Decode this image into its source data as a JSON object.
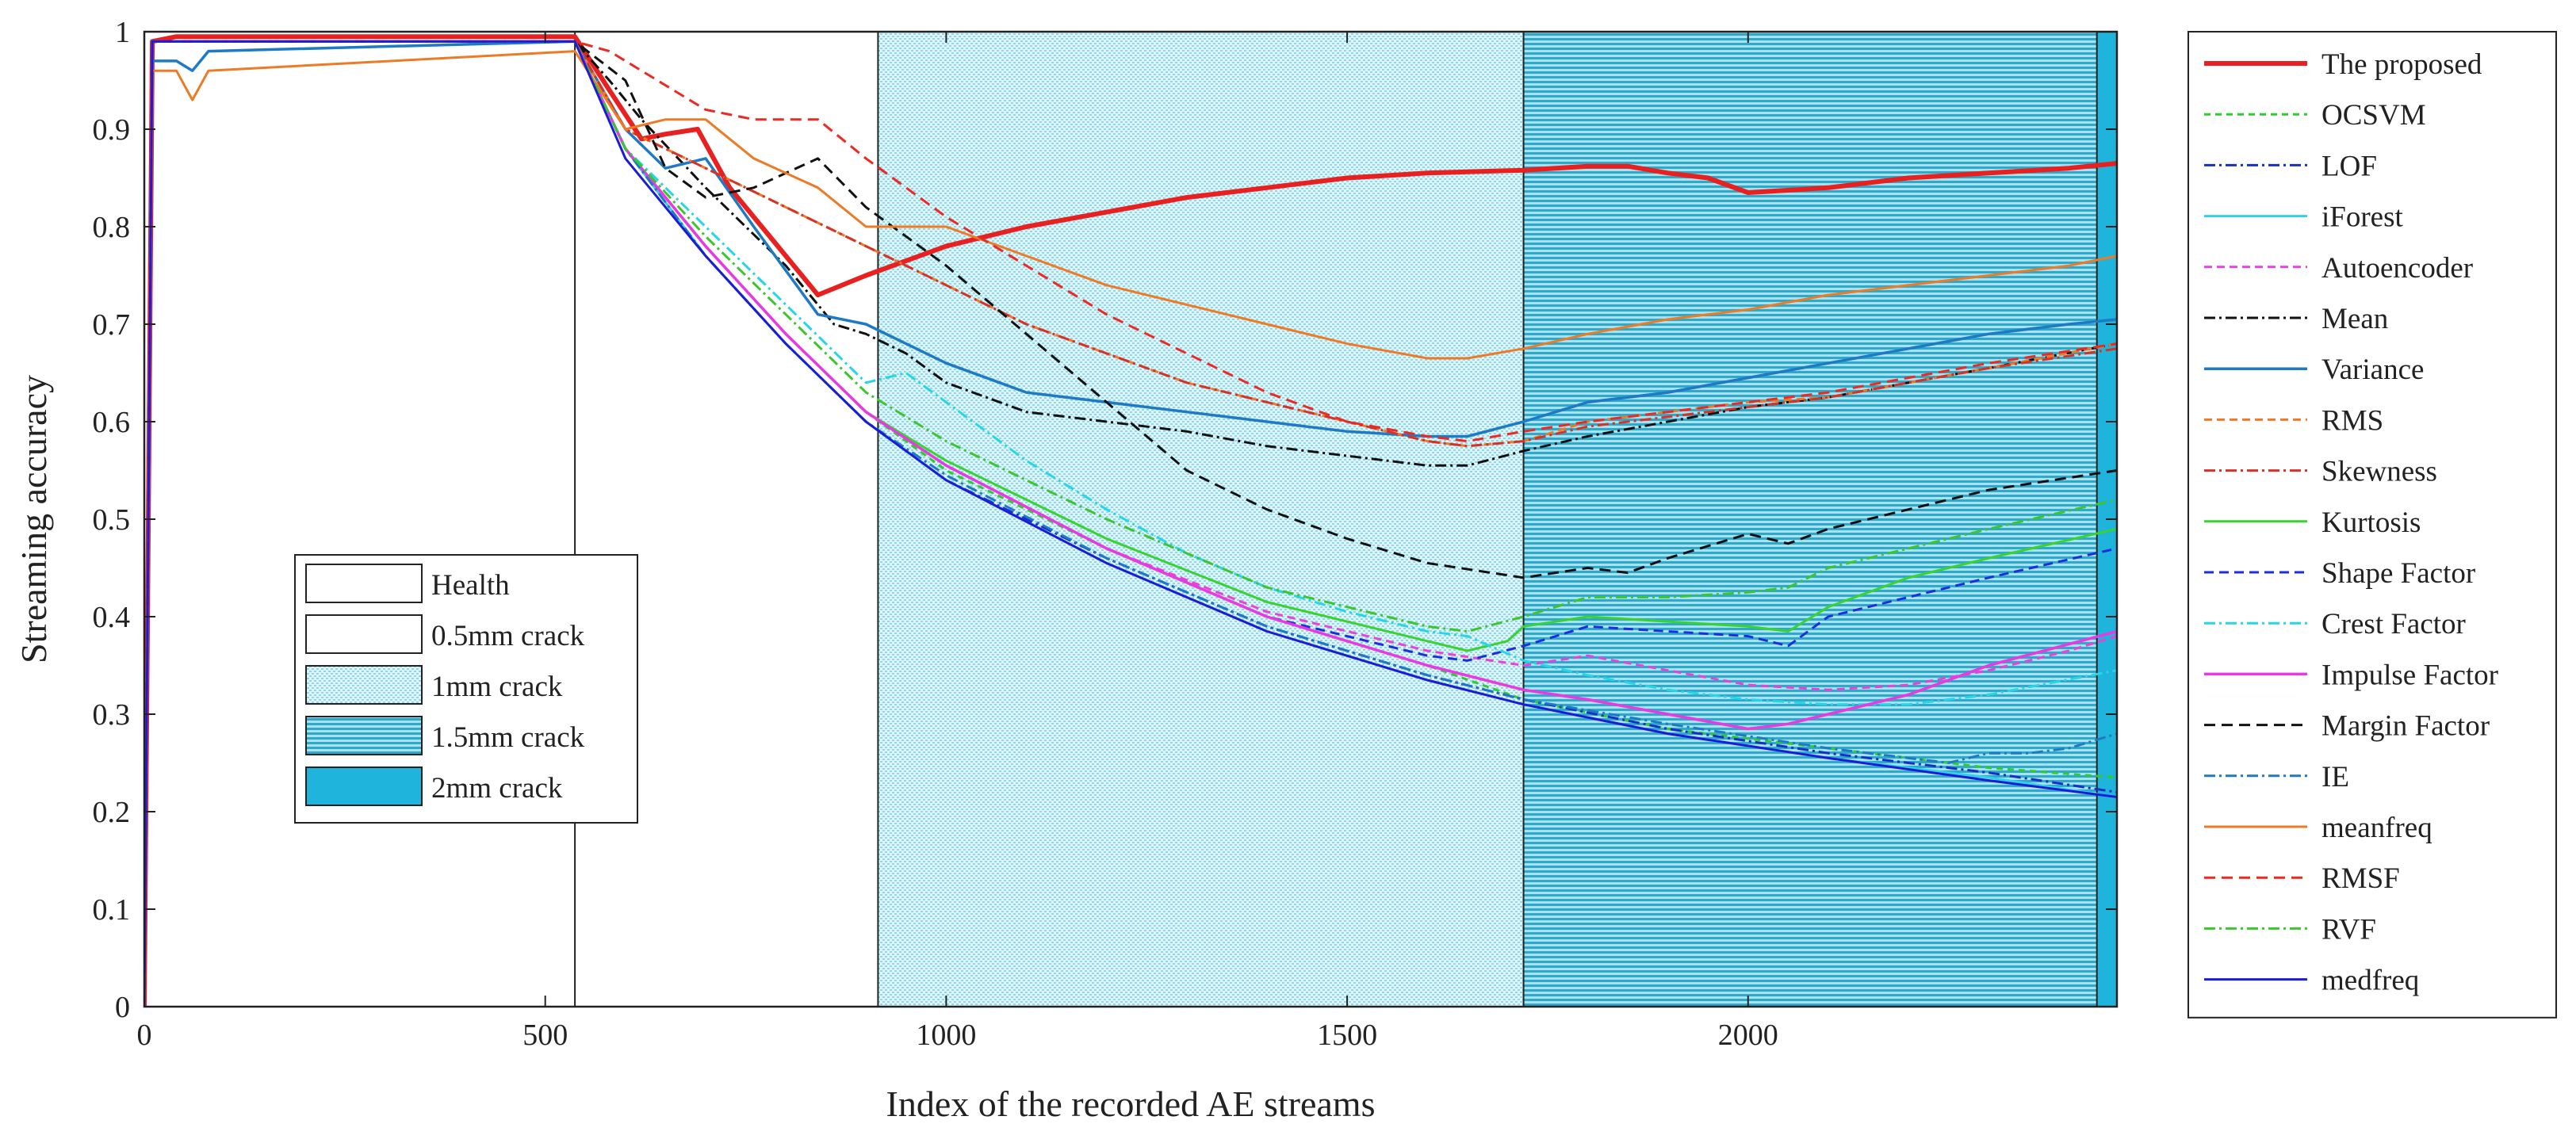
{
  "chart_data": {
    "type": "line",
    "title": "",
    "xlabel": "Index of the recorded AE streams",
    "ylabel": "Streaming accuracy",
    "xlim": [
      0,
      2460
    ],
    "ylim": [
      0,
      1
    ],
    "xticks": [
      0,
      500,
      1000,
      1500,
      2000
    ],
    "yticks": [
      0,
      0.1,
      0.2,
      0.3,
      0.4,
      0.5,
      0.6,
      0.7,
      0.8,
      0.9,
      1
    ],
    "grid": false,
    "legend_position": "outside-right",
    "colors": {
      "region_light": "#bfe9f3",
      "region_dark": "#3cb8d7",
      "region_solid": "#1fb4dc"
    },
    "regions": [
      {
        "label": "Health",
        "from": 0,
        "to": 537,
        "style": "blank"
      },
      {
        "label": "0.5mm crack",
        "from": 537,
        "to": 915,
        "style": "blank"
      },
      {
        "label": "1mm crack",
        "from": 915,
        "to": 1720,
        "style": "light-dots"
      },
      {
        "label": "1.5mm crack",
        "from": 1720,
        "to": 2435,
        "style": "dense-lines"
      },
      {
        "label": "2mm crack",
        "from": 2435,
        "to": 2460,
        "style": "solid"
      }
    ],
    "series": [
      {
        "name": "The proposed",
        "color": "#e8201f",
        "dash": "solid",
        "width": 6,
        "x": [
          0,
          10,
          40,
          537,
          580,
          620,
          650,
          690,
          730,
          780,
          840,
          900,
          1000,
          1100,
          1200,
          1300,
          1400,
          1500,
          1600,
          1720,
          1800,
          1850,
          1900,
          1950,
          2000,
          2100,
          2200,
          2300,
          2400,
          2460
        ],
        "y": [
          0,
          0.99,
          0.995,
          0.995,
          0.94,
          0.89,
          0.895,
          0.9,
          0.84,
          0.79,
          0.73,
          0.75,
          0.78,
          0.8,
          0.815,
          0.83,
          0.84,
          0.85,
          0.855,
          0.858,
          0.862,
          0.862,
          0.855,
          0.85,
          0.835,
          0.84,
          0.85,
          0.855,
          0.86,
          0.865
        ]
      },
      {
        "name": "OCSVM",
        "color": "#2ecc2e",
        "dash": "8,6",
        "width": 3,
        "x": [
          0,
          10,
          40,
          537,
          600,
          700,
          800,
          900,
          1000,
          1200,
          1400,
          1600,
          1720,
          1900,
          2100,
          2300,
          2460
        ],
        "y": [
          0,
          0.99,
          0.99,
          0.99,
          0.88,
          0.78,
          0.69,
          0.61,
          0.55,
          0.47,
          0.4,
          0.35,
          0.315,
          0.285,
          0.265,
          0.245,
          0.235
        ]
      },
      {
        "name": "LOF",
        "color": "#1630c8",
        "dash": "14,5,3,5",
        "width": 3,
        "x": [
          0,
          10,
          40,
          537,
          600,
          700,
          800,
          900,
          1000,
          1200,
          1400,
          1600,
          1720,
          1900,
          2100,
          2300,
          2460
        ],
        "y": [
          0,
          0.99,
          0.99,
          0.99,
          0.88,
          0.77,
          0.68,
          0.6,
          0.54,
          0.46,
          0.39,
          0.34,
          0.315,
          0.285,
          0.26,
          0.24,
          0.22
        ]
      },
      {
        "name": "iForest",
        "color": "#33d0ec",
        "dash": "solid",
        "width": 3,
        "x": [
          0,
          10,
          40,
          537,
          600,
          700,
          800,
          900,
          1000,
          1200,
          1400,
          1600,
          1720,
          1900,
          2100,
          2300,
          2460
        ],
        "y": [
          0,
          0.99,
          0.99,
          0.99,
          0.88,
          0.77,
          0.68,
          0.6,
          0.54,
          0.455,
          0.385,
          0.335,
          0.31,
          0.28,
          0.255,
          0.235,
          0.215
        ]
      },
      {
        "name": "Autoencoder",
        "color": "#e843d8",
        "dash": "10,6",
        "width": 3,
        "x": [
          0,
          10,
          40,
          537,
          600,
          700,
          800,
          900,
          1000,
          1200,
          1400,
          1600,
          1720,
          1800,
          1900,
          2000,
          2100,
          2200,
          2300,
          2400,
          2460
        ],
        "y": [
          0,
          0.99,
          0.99,
          0.99,
          0.88,
          0.78,
          0.69,
          0.61,
          0.555,
          0.47,
          0.405,
          0.365,
          0.35,
          0.36,
          0.345,
          0.33,
          0.325,
          0.33,
          0.345,
          0.365,
          0.38
        ]
      },
      {
        "name": "Mean",
        "color": "#111111",
        "dash": "14,5,3,5",
        "width": 3,
        "x": [
          0,
          10,
          40,
          537,
          580,
          620,
          700,
          800,
          860,
          900,
          950,
          1000,
          1100,
          1200,
          1300,
          1400,
          1500,
          1600,
          1650,
          1720,
          1800,
          1900,
          2000,
          2100,
          2200,
          2300,
          2460
        ],
        "y": [
          0,
          0.99,
          0.99,
          0.99,
          0.95,
          0.91,
          0.84,
          0.76,
          0.7,
          0.69,
          0.67,
          0.64,
          0.61,
          0.6,
          0.59,
          0.575,
          0.565,
          0.555,
          0.555,
          0.57,
          0.585,
          0.6,
          0.615,
          0.625,
          0.64,
          0.655,
          0.68
        ]
      },
      {
        "name": "Variance",
        "color": "#1f7ac6",
        "dash": "solid",
        "width": 3.5,
        "x": [
          0,
          10,
          40,
          60,
          80,
          537,
          600,
          650,
          700,
          760,
          840,
          900,
          1000,
          1100,
          1200,
          1300,
          1400,
          1500,
          1600,
          1650,
          1720,
          1800,
          1900,
          2000,
          2100,
          2200,
          2300,
          2400,
          2460
        ],
        "y": [
          0,
          0.97,
          0.97,
          0.96,
          0.98,
          0.99,
          0.9,
          0.86,
          0.87,
          0.8,
          0.71,
          0.7,
          0.66,
          0.63,
          0.62,
          0.61,
          0.6,
          0.59,
          0.585,
          0.585,
          0.6,
          0.62,
          0.63,
          0.645,
          0.66,
          0.675,
          0.69,
          0.7,
          0.705
        ]
      },
      {
        "name": "RMS",
        "color": "#ed7b25",
        "dash": "10,6",
        "width": 3,
        "x": [
          0,
          10,
          40,
          537,
          600,
          700,
          800,
          900,
          1000,
          1100,
          1200,
          1300,
          1400,
          1500,
          1600,
          1650,
          1720,
          1800,
          1900,
          2000,
          2100,
          2200,
          2300,
          2460
        ],
        "y": [
          0,
          0.99,
          0.99,
          0.99,
          0.9,
          0.86,
          0.82,
          0.78,
          0.74,
          0.7,
          0.67,
          0.64,
          0.62,
          0.6,
          0.58,
          0.575,
          0.58,
          0.6,
          0.61,
          0.62,
          0.625,
          0.64,
          0.655,
          0.68
        ]
      },
      {
        "name": "Skewness",
        "color": "#d63328",
        "dash": "14,5,3,5",
        "width": 3,
        "x": [
          0,
          10,
          40,
          537,
          600,
          700,
          800,
          900,
          1000,
          1100,
          1200,
          1300,
          1400,
          1500,
          1600,
          1650,
          1720,
          1800,
          1900,
          2000,
          2100,
          2200,
          2300,
          2460
        ],
        "y": [
          0,
          0.99,
          0.99,
          0.99,
          0.9,
          0.86,
          0.82,
          0.78,
          0.74,
          0.7,
          0.67,
          0.64,
          0.62,
          0.6,
          0.58,
          0.575,
          0.58,
          0.595,
          0.605,
          0.615,
          0.625,
          0.64,
          0.655,
          0.675
        ]
      },
      {
        "name": "Kurtosis",
        "color": "#39d330",
        "dash": "solid",
        "width": 3,
        "x": [
          0,
          10,
          40,
          537,
          600,
          700,
          800,
          900,
          1000,
          1200,
          1400,
          1600,
          1650,
          1700,
          1720,
          1800,
          1900,
          2000,
          2050,
          2100,
          2200,
          2300,
          2460
        ],
        "y": [
          0,
          0.99,
          0.99,
          0.99,
          0.88,
          0.78,
          0.69,
          0.61,
          0.56,
          0.48,
          0.415,
          0.375,
          0.365,
          0.375,
          0.39,
          0.4,
          0.395,
          0.39,
          0.385,
          0.41,
          0.44,
          0.46,
          0.49
        ]
      },
      {
        "name": "Shape Factor",
        "color": "#1c2ee0",
        "dash": "12,7",
        "width": 3,
        "x": [
          0,
          10,
          40,
          537,
          600,
          700,
          800,
          900,
          1000,
          1200,
          1400,
          1600,
          1650,
          1720,
          1800,
          1900,
          2000,
          2050,
          2100,
          2200,
          2300,
          2460
        ],
        "y": [
          0,
          0.99,
          0.99,
          0.99,
          0.88,
          0.78,
          0.69,
          0.61,
          0.555,
          0.47,
          0.4,
          0.36,
          0.355,
          0.37,
          0.39,
          0.385,
          0.38,
          0.37,
          0.4,
          0.42,
          0.44,
          0.47
        ]
      },
      {
        "name": "Crest Factor",
        "color": "#24d6e8",
        "dash": "14,5,3,5",
        "width": 3,
        "x": [
          0,
          10,
          40,
          537,
          600,
          700,
          800,
          900,
          950,
          1000,
          1100,
          1200,
          1300,
          1400,
          1500,
          1600,
          1650,
          1720,
          1800,
          1900,
          2000,
          2100,
          2200,
          2300,
          2460
        ],
        "y": [
          0,
          0.99,
          0.99,
          0.99,
          0.88,
          0.8,
          0.72,
          0.64,
          0.65,
          0.62,
          0.56,
          0.51,
          0.465,
          0.43,
          0.405,
          0.385,
          0.38,
          0.355,
          0.34,
          0.325,
          0.315,
          0.31,
          0.31,
          0.32,
          0.345
        ]
      },
      {
        "name": "Impulse Factor",
        "color": "#e83ae0",
        "dash": "solid",
        "width": 3.5,
        "x": [
          0,
          10,
          40,
          537,
          600,
          700,
          800,
          900,
          1000,
          1200,
          1400,
          1600,
          1720,
          1800,
          1900,
          2000,
          2050,
          2100,
          2200,
          2300,
          2460
        ],
        "y": [
          0,
          0.99,
          0.99,
          0.99,
          0.88,
          0.78,
          0.69,
          0.61,
          0.555,
          0.47,
          0.4,
          0.35,
          0.325,
          0.315,
          0.3,
          0.285,
          0.29,
          0.3,
          0.32,
          0.35,
          0.385
        ]
      },
      {
        "name": "Margin Factor",
        "color": "#111111",
        "dash": "14,8",
        "width": 3,
        "x": [
          0,
          10,
          40,
          537,
          600,
          650,
          700,
          760,
          840,
          900,
          1000,
          1100,
          1200,
          1300,
          1400,
          1500,
          1600,
          1720,
          1800,
          1850,
          1900,
          2000,
          2050,
          2100,
          2200,
          2300,
          2460
        ],
        "y": [
          0,
          0.99,
          0.99,
          0.99,
          0.95,
          0.86,
          0.83,
          0.84,
          0.87,
          0.82,
          0.76,
          0.69,
          0.62,
          0.55,
          0.51,
          0.48,
          0.455,
          0.44,
          0.45,
          0.445,
          0.46,
          0.485,
          0.475,
          0.49,
          0.51,
          0.53,
          0.55
        ]
      },
      {
        "name": "IE",
        "color": "#1f7ac6",
        "dash": "14,5,3,5",
        "width": 3,
        "x": [
          0,
          10,
          40,
          537,
          600,
          700,
          800,
          900,
          1000,
          1200,
          1400,
          1600,
          1720,
          1900,
          2100,
          2250,
          2300,
          2350,
          2400,
          2460
        ],
        "y": [
          0,
          0.99,
          0.99,
          0.99,
          0.88,
          0.77,
          0.68,
          0.6,
          0.545,
          0.46,
          0.39,
          0.34,
          0.315,
          0.29,
          0.265,
          0.25,
          0.26,
          0.26,
          0.265,
          0.28
        ]
      },
      {
        "name": "meanfreq",
        "color": "#ed7b25",
        "dash": "solid",
        "width": 3,
        "x": [
          0,
          10,
          40,
          60,
          80,
          537,
          600,
          650,
          700,
          760,
          840,
          900,
          1000,
          1100,
          1200,
          1300,
          1400,
          1500,
          1600,
          1650,
          1720,
          1800,
          1900,
          2000,
          2100,
          2200,
          2300,
          2400,
          2460
        ],
        "y": [
          0,
          0.96,
          0.96,
          0.93,
          0.96,
          0.98,
          0.9,
          0.91,
          0.91,
          0.87,
          0.84,
          0.8,
          0.8,
          0.77,
          0.74,
          0.72,
          0.7,
          0.68,
          0.665,
          0.665,
          0.675,
          0.69,
          0.705,
          0.715,
          0.73,
          0.74,
          0.75,
          0.76,
          0.77
        ]
      },
      {
        "name": "RMSF",
        "color": "#ea2a23",
        "dash": "14,8",
        "width": 3,
        "x": [
          0,
          10,
          40,
          537,
          580,
          620,
          700,
          760,
          840,
          900,
          1000,
          1100,
          1200,
          1300,
          1400,
          1500,
          1600,
          1650,
          1720,
          1800,
          1900,
          2000,
          2100,
          2200,
          2300,
          2460
        ],
        "y": [
          0,
          0.99,
          0.99,
          0.99,
          0.98,
          0.96,
          0.92,
          0.91,
          0.91,
          0.87,
          0.81,
          0.76,
          0.71,
          0.67,
          0.63,
          0.6,
          0.585,
          0.58,
          0.59,
          0.6,
          0.61,
          0.62,
          0.63,
          0.645,
          0.66,
          0.68
        ]
      },
      {
        "name": "RVF",
        "color": "#3bc62e",
        "dash": "14,5,3,5",
        "width": 3,
        "x": [
          0,
          10,
          40,
          537,
          600,
          700,
          800,
          900,
          1000,
          1200,
          1400,
          1600,
          1650,
          1720,
          1800,
          1900,
          2000,
          2050,
          2100,
          2200,
          2300,
          2460
        ],
        "y": [
          0,
          0.99,
          0.99,
          0.99,
          0.88,
          0.79,
          0.71,
          0.63,
          0.58,
          0.5,
          0.43,
          0.39,
          0.385,
          0.4,
          0.42,
          0.42,
          0.425,
          0.43,
          0.45,
          0.47,
          0.49,
          0.52
        ]
      },
      {
        "name": "medfreq",
        "color": "#1c1cd6",
        "dash": "solid",
        "width": 3,
        "x": [
          0,
          10,
          40,
          537,
          600,
          700,
          800,
          900,
          1000,
          1200,
          1400,
          1600,
          1720,
          1900,
          2100,
          2300,
          2460
        ],
        "y": [
          0,
          0.99,
          0.99,
          0.99,
          0.87,
          0.77,
          0.68,
          0.6,
          0.54,
          0.455,
          0.385,
          0.335,
          0.31,
          0.28,
          0.255,
          0.232,
          0.215
        ]
      }
    ]
  }
}
